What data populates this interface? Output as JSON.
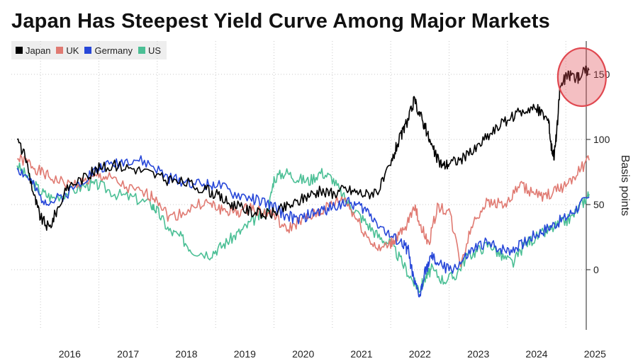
{
  "chart_data": {
    "type": "line",
    "title": "Japan Has Steepest Yield Curve Among Major Markets",
    "ylabel": "Basis points",
    "xlabel": "",
    "xlim": [
      2015.6,
      2025.5
    ],
    "ylim": [
      -47,
      180
    ],
    "y_ticks": [
      "150",
      "100",
      "50",
      "0"
    ],
    "x_ticks": [
      "2016",
      "2017",
      "2018",
      "2019",
      "2020",
      "2021",
      "2022",
      "2023",
      "2024",
      "2025"
    ],
    "legend_position": "top-left",
    "grid": true,
    "highlight": {
      "type": "circle",
      "x": 2025.3,
      "y": 150,
      "color": "#e04850"
    },
    "series": [
      {
        "name": "Japan",
        "color": "#000000",
        "x": [
          2015.6,
          2015.75,
          2015.9,
          2016.0,
          2016.15,
          2016.3,
          2016.5,
          2016.8,
          2017.0,
          2017.3,
          2017.6,
          2017.9,
          2018.2,
          2018.5,
          2018.8,
          2019.0,
          2019.2,
          2019.4,
          2019.6,
          2019.8,
          2020.0,
          2020.2,
          2020.4,
          2020.6,
          2020.8,
          2021.0,
          2021.2,
          2021.4,
          2021.6,
          2021.8,
          2022.0,
          2022.1,
          2022.2,
          2022.3,
          2022.4,
          2022.5,
          2022.6,
          2022.7,
          2022.8,
          2022.9,
          2023.0,
          2023.2,
          2023.4,
          2023.6,
          2023.8,
          2024.0,
          2024.2,
          2024.4,
          2024.55,
          2024.7,
          2024.75,
          2024.8,
          2024.85,
          2024.9,
          2025.0,
          2025.1,
          2025.2,
          2025.3,
          2025.4
        ],
        "values": [
          100,
          85,
          55,
          40,
          32,
          48,
          65,
          72,
          78,
          80,
          78,
          74,
          68,
          67,
          62,
          58,
          52,
          48,
          45,
          42,
          44,
          48,
          52,
          58,
          60,
          58,
          62,
          60,
          58,
          62,
          80,
          95,
          105,
          115,
          130,
          120,
          108,
          95,
          85,
          80,
          82,
          85,
          90,
          100,
          108,
          115,
          120,
          125,
          122,
          115,
          95,
          88,
          108,
          140,
          148,
          150,
          147,
          152,
          154
        ]
      },
      {
        "name": "UK",
        "color": "#e07a72",
        "x": [
          2015.6,
          2015.8,
          2016.0,
          2016.2,
          2016.5,
          2016.8,
          2017.0,
          2017.2,
          2017.5,
          2017.8,
          2018.0,
          2018.2,
          2018.5,
          2018.8,
          2019.0,
          2019.2,
          2019.4,
          2019.6,
          2019.8,
          2020.0,
          2020.2,
          2020.4,
          2020.6,
          2020.8,
          2021.0,
          2021.2,
          2021.4,
          2021.6,
          2021.8,
          2022.0,
          2022.1,
          2022.25,
          2022.4,
          2022.5,
          2022.65,
          2022.8,
          2023.0,
          2023.2,
          2023.4,
          2023.6,
          2023.8,
          2024.0,
          2024.2,
          2024.4,
          2024.6,
          2024.8,
          2025.0,
          2025.2,
          2025.4
        ],
        "values": [
          85,
          82,
          75,
          70,
          65,
          68,
          72,
          70,
          62,
          58,
          55,
          40,
          45,
          52,
          48,
          45,
          44,
          48,
          44,
          42,
          30,
          36,
          40,
          45,
          50,
          55,
          40,
          25,
          15,
          20,
          25,
          30,
          50,
          35,
          20,
          48,
          45,
          5,
          35,
          50,
          52,
          50,
          65,
          60,
          55,
          60,
          65,
          75,
          84
        ]
      },
      {
        "name": "Germany",
        "color": "#2747d8",
        "x": [
          2015.6,
          2015.8,
          2016.0,
          2016.2,
          2016.5,
          2016.8,
          2017.0,
          2017.3,
          2017.6,
          2017.9,
          2018.2,
          2018.5,
          2018.8,
          2019.0,
          2019.3,
          2019.6,
          2019.8,
          2020.0,
          2020.2,
          2020.4,
          2020.6,
          2020.8,
          2021.0,
          2021.2,
          2021.4,
          2021.6,
          2021.8,
          2022.0,
          2022.2,
          2022.3,
          2022.4,
          2022.5,
          2022.6,
          2022.7,
          2022.8,
          2023.0,
          2023.2,
          2023.4,
          2023.6,
          2023.8,
          2024.0,
          2024.2,
          2024.4,
          2024.6,
          2024.8,
          2025.0,
          2025.2,
          2025.4
        ],
        "values": [
          78,
          70,
          55,
          52,
          60,
          72,
          78,
          82,
          85,
          80,
          70,
          68,
          65,
          66,
          58,
          55,
          52,
          48,
          42,
          38,
          42,
          45,
          48,
          52,
          50,
          45,
          35,
          25,
          20,
          15,
          -10,
          -20,
          0,
          10,
          5,
          0,
          5,
          15,
          20,
          18,
          15,
          18,
          25,
          30,
          35,
          40,
          48,
          56
        ]
      },
      {
        "name": "US",
        "color": "#4bbf95",
        "x": [
          2015.6,
          2015.8,
          2016.0,
          2016.2,
          2016.5,
          2016.8,
          2017.0,
          2017.3,
          2017.6,
          2017.9,
          2018.0,
          2018.2,
          2018.4,
          2018.6,
          2018.9,
          2019.1,
          2019.3,
          2019.5,
          2019.7,
          2019.9,
          2020.0,
          2020.2,
          2020.4,
          2020.6,
          2020.8,
          2021.0,
          2021.2,
          2021.4,
          2021.6,
          2021.8,
          2022.0,
          2022.2,
          2022.4,
          2022.5,
          2022.6,
          2022.7,
          2022.9,
          2023.1,
          2023.3,
          2023.5,
          2023.7,
          2023.9,
          2024.1,
          2024.3,
          2024.5,
          2024.7,
          2024.9,
          2025.1,
          2025.3,
          2025.4
        ],
        "values": [
          80,
          70,
          60,
          55,
          60,
          65,
          65,
          58,
          55,
          50,
          45,
          30,
          25,
          15,
          12,
          18,
          25,
          32,
          40,
          45,
          70,
          75,
          70,
          68,
          75,
          70,
          55,
          45,
          35,
          25,
          20,
          5,
          -10,
          -15,
          -5,
          0,
          -8,
          -5,
          10,
          15,
          20,
          10,
          5,
          20,
          25,
          30,
          35,
          40,
          52,
          58
        ]
      }
    ]
  }
}
